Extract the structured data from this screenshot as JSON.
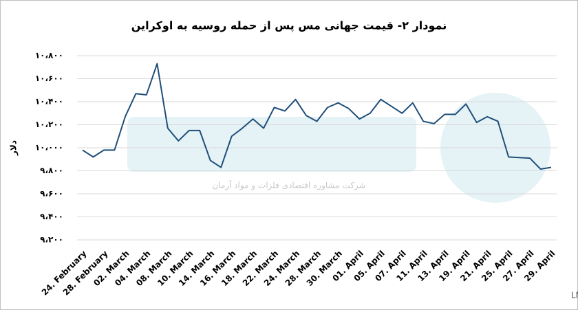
{
  "chart_data": {
    "type": "line",
    "title": "نمودار ۲- قیمت جهانی مس پس از حمله روسیه به اوکراین",
    "y_label": "دلار",
    "source": "منبع: LME",
    "watermark": "شرکت مشاوره اقتصادی فلزات و مواد آرمان",
    "categories": [
      "24. February",
      null,
      "28. February",
      null,
      "02. March",
      null,
      "04. March",
      null,
      "08. March",
      null,
      "10. March",
      null,
      "14. March",
      null,
      "16. March",
      null,
      "18. March",
      null,
      "22. March",
      null,
      "24. March",
      null,
      "28. March",
      null,
      "30. March",
      null,
      "01. April",
      null,
      "05. April",
      null,
      "07. April",
      null,
      "11. April",
      null,
      "13. April",
      null,
      "19. April",
      null,
      "21. April",
      null,
      "25. April",
      null,
      "27. April",
      null,
      "29. April"
    ],
    "series": [
      {
        "color": "#1f4e79",
        "values": [
          9980,
          9920,
          9980,
          9980,
          10270,
          10470,
          10460,
          10730,
          10170,
          10060,
          10150,
          10150,
          9890,
          9830,
          10100,
          10170,
          10250,
          10170,
          10350,
          10320,
          10420,
          10280,
          10230,
          10350,
          10390,
          10340,
          10250,
          10300,
          10420,
          10360,
          10300,
          10390,
          10230,
          10210,
          10290,
          10290,
          10380,
          10220,
          10270,
          10230,
          9920,
          9915,
          9910,
          9815,
          9830
        ]
      }
    ],
    "ylim": [
      9200,
      10800
    ],
    "yticks": [
      {
        "value": 9200,
        "label": "۹،۲۰۰"
      },
      {
        "value": 9400,
        "label": "۹،۴۰۰"
      },
      {
        "value": 9600,
        "label": "۹،۶۰۰"
      },
      {
        "value": 9800,
        "label": "۹،۸۰۰"
      },
      {
        "value": 10000,
        "label": "۱۰،۰۰۰"
      },
      {
        "value": 10200,
        "label": "۱۰،۲۰۰"
      },
      {
        "value": 10400,
        "label": "۱۰،۴۰۰"
      },
      {
        "value": 10600,
        "label": "۱۰،۶۰۰"
      },
      {
        "value": 10800,
        "label": "۱۰،۸۰۰"
      }
    ],
    "grid": true
  }
}
